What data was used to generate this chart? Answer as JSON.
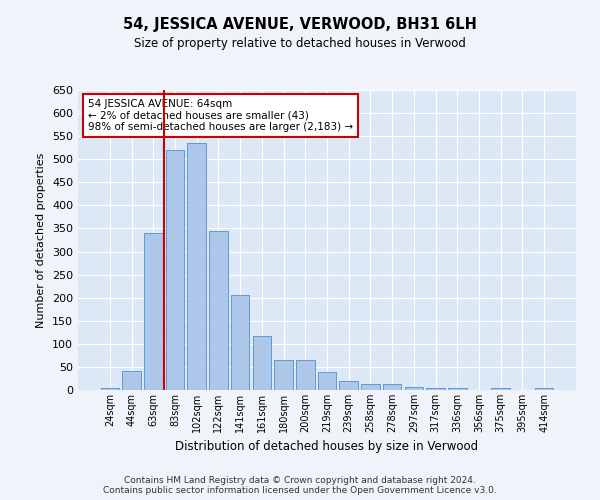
{
  "title": "54, JESSICA AVENUE, VERWOOD, BH31 6LH",
  "subtitle": "Size of property relative to detached houses in Verwood",
  "xlabel": "Distribution of detached houses by size in Verwood",
  "ylabel": "Number of detached properties",
  "bar_labels": [
    "24sqm",
    "44sqm",
    "63sqm",
    "83sqm",
    "102sqm",
    "122sqm",
    "141sqm",
    "161sqm",
    "180sqm",
    "200sqm",
    "219sqm",
    "239sqm",
    "258sqm",
    "278sqm",
    "297sqm",
    "317sqm",
    "336sqm",
    "356sqm",
    "375sqm",
    "395sqm",
    "414sqm"
  ],
  "bar_values": [
    5,
    42,
    340,
    520,
    535,
    345,
    205,
    118,
    65,
    65,
    38,
    20,
    12,
    12,
    6,
    5,
    5,
    1,
    5,
    1,
    4
  ],
  "bar_color": "#aec6e8",
  "bar_edgecolor": "#5b9bd5",
  "bg_color": "#dce8f5",
  "grid_color": "#ffffff",
  "annotation_box_text": "54 JESSICA AVENUE: 64sqm\n← 2% of detached houses are smaller (43)\n98% of semi-detached houses are larger (2,183) →",
  "annotation_box_color": "#cc0000",
  "ylim": [
    0,
    650
  ],
  "yticks": [
    0,
    50,
    100,
    150,
    200,
    250,
    300,
    350,
    400,
    450,
    500,
    550,
    600,
    650
  ],
  "red_line_index": 2.5,
  "footer_line1": "Contains HM Land Registry data © Crown copyright and database right 2024.",
  "footer_line2": "Contains public sector information licensed under the Open Government Licence v3.0."
}
